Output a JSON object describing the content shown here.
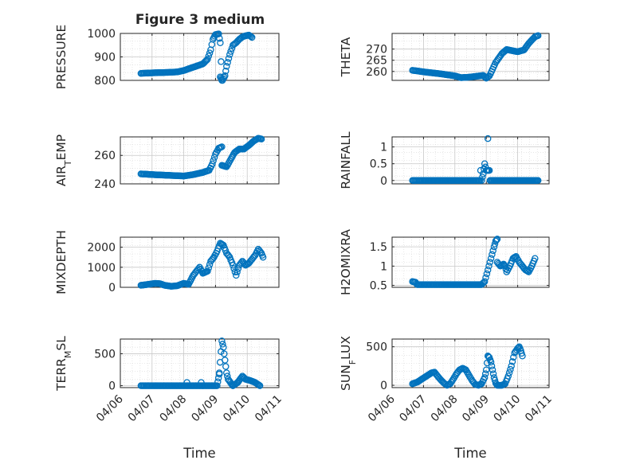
{
  "figure_title": "Figure 3 medium",
  "colors": {
    "marker": "#0072BD",
    "axis": "#262626",
    "grid": "#d6d6d6"
  },
  "chart_data": [
    {
      "type": "scatter",
      "ylabel": "PRESSURE",
      "ylim": [
        800,
        1000
      ],
      "yticks": [
        800,
        900,
        1000
      ],
      "ytick_labels": [
        "800",
        "900",
        "1000"
      ],
      "xlim": [
        0,
        5
      ],
      "xticks": [
        0,
        1,
        2,
        3,
        4,
        5
      ],
      "xtick_labels": [
        "04/06",
        "04/07",
        "04/08",
        "04/09",
        "04/10",
        "04/11"
      ],
      "xlabel": "",
      "segments": [
        [
          [
            0.65,
            830
          ],
          [
            1.0,
            832
          ],
          [
            1.5,
            834
          ],
          [
            1.8,
            836
          ],
          [
            2.0,
            842
          ],
          [
            2.3,
            856
          ],
          [
            2.6,
            870
          ],
          [
            2.75,
            890
          ],
          [
            2.85,
            930
          ],
          [
            2.92,
            975
          ],
          [
            3.0,
            995
          ],
          [
            3.1,
            998
          ],
          [
            3.15,
            960
          ],
          [
            3.2,
            800
          ]
        ],
        [
          [
            3.15,
            815
          ],
          [
            3.22,
            800
          ],
          [
            3.3,
            820
          ],
          [
            3.35,
            860
          ],
          [
            3.45,
            910
          ],
          [
            3.55,
            950
          ],
          [
            3.65,
            960
          ],
          [
            3.75,
            975
          ],
          [
            3.85,
            985
          ],
          [
            3.95,
            990
          ],
          [
            4.05,
            993
          ],
          [
            4.15,
            983
          ]
        ]
      ]
    },
    {
      "type": "scatter",
      "ylabel": "THETA",
      "ylim": [
        256,
        277
      ],
      "yticks": [
        260,
        265,
        270
      ],
      "ytick_labels": [
        "260",
        "265",
        "270"
      ],
      "xlim": [
        0,
        5
      ],
      "xticks": [
        0,
        1,
        2,
        3,
        4,
        5
      ],
      "xtick_labels": [
        "04/06",
        "04/07",
        "04/08",
        "04/09",
        "04/10",
        "04/11"
      ],
      "xlabel": "",
      "segments": [
        [
          [
            0.65,
            260.5
          ],
          [
            1.0,
            259.8
          ],
          [
            1.5,
            259
          ],
          [
            2.0,
            258
          ],
          [
            2.2,
            257.2
          ],
          [
            2.5,
            257.5
          ],
          [
            2.9,
            258.2
          ],
          [
            3.0,
            257
          ],
          [
            3.1,
            258
          ],
          [
            3.3,
            264
          ],
          [
            3.5,
            268
          ],
          [
            3.65,
            269.8
          ],
          [
            3.85,
            269.2
          ],
          [
            4.0,
            268.8
          ],
          [
            4.2,
            269.6
          ],
          [
            4.35,
            272.5
          ],
          [
            4.55,
            275.5
          ],
          [
            4.65,
            276
          ]
        ]
      ]
    },
    {
      "type": "scatter",
      "ylabel": "AIR_TEMP",
      "ylim": [
        240,
        273
      ],
      "yticks": [
        240,
        260
      ],
      "ytick_labels": [
        "240",
        "260"
      ],
      "xlim": [
        0,
        5
      ],
      "xticks": [
        0,
        1,
        2,
        3,
        4,
        5
      ],
      "xtick_labels": [
        "04/06",
        "04/07",
        "04/08",
        "04/09",
        "04/10",
        "04/11"
      ],
      "xlabel": "",
      "segments": [
        [
          [
            0.65,
            247
          ],
          [
            1.0,
            246.5
          ],
          [
            1.5,
            246
          ],
          [
            2.0,
            245.5
          ],
          [
            2.3,
            246.5
          ],
          [
            2.6,
            248
          ],
          [
            2.8,
            249.5
          ],
          [
            2.9,
            254
          ],
          [
            3.0,
            261
          ],
          [
            3.1,
            265
          ],
          [
            3.2,
            266
          ]
        ],
        [
          [
            3.2,
            253
          ],
          [
            3.35,
            252
          ],
          [
            3.45,
            256
          ],
          [
            3.6,
            262
          ],
          [
            3.75,
            264.5
          ],
          [
            3.9,
            264.5
          ],
          [
            4.05,
            267
          ],
          [
            4.2,
            270
          ],
          [
            4.35,
            272
          ],
          [
            4.45,
            271.5
          ]
        ]
      ]
    },
    {
      "type": "scatter",
      "ylabel": "RAINFALL",
      "ylim": [
        -0.1,
        1.3
      ],
      "yticks": [
        0,
        0.5,
        1
      ],
      "ytick_labels": [
        "0",
        "0.5",
        "1"
      ],
      "xlim": [
        0,
        5
      ],
      "xticks": [
        0,
        1,
        2,
        3,
        4,
        5
      ],
      "xtick_labels": [
        "04/06",
        "04/07",
        "04/08",
        "04/09",
        "04/10",
        "04/11"
      ],
      "xlabel": "",
      "segments": [
        [
          [
            0.65,
            0
          ],
          [
            1.0,
            0
          ],
          [
            1.5,
            0
          ],
          [
            2.0,
            0
          ],
          [
            2.5,
            0
          ],
          [
            2.8,
            0
          ]
        ],
        [
          [
            2.82,
            0.3
          ],
          [
            2.85,
            0
          ],
          [
            2.9,
            0.2
          ],
          [
            2.95,
            0.5
          ],
          [
            3.0,
            0.3
          ],
          [
            3.05,
            0.3
          ],
          [
            3.1,
            0.3
          ],
          [
            3.12,
            0
          ]
        ],
        [
          [
            3.15,
            0
          ],
          [
            3.5,
            0
          ],
          [
            4.0,
            0
          ],
          [
            4.5,
            0
          ],
          [
            4.65,
            0
          ]
        ]
      ],
      "extra_points": [
        [
          3.05,
          1.25
        ]
      ]
    },
    {
      "type": "scatter",
      "ylabel": "MIXDEPTH",
      "ylim": [
        0,
        2500
      ],
      "yticks": [
        0,
        1000,
        2000
      ],
      "ytick_labels": [
        "0",
        "1000",
        "2000"
      ],
      "xlim": [
        0,
        5
      ],
      "xticks": [
        0,
        1,
        2,
        3,
        4,
        5
      ],
      "xtick_labels": [
        "04/06",
        "04/07",
        "04/08",
        "04/09",
        "04/10",
        "04/11"
      ],
      "xlabel": "",
      "segments": [
        [
          [
            0.65,
            100
          ],
          [
            0.9,
            150
          ],
          [
            1.1,
            200
          ],
          [
            1.25,
            180
          ],
          [
            1.4,
            100
          ],
          [
            1.6,
            50
          ],
          [
            1.8,
            80
          ],
          [
            2.0,
            200
          ],
          [
            2.15,
            150
          ],
          [
            2.3,
            600
          ],
          [
            2.4,
            800
          ],
          [
            2.5,
            1000
          ],
          [
            2.6,
            700
          ],
          [
            2.75,
            800
          ],
          [
            2.85,
            1300
          ],
          [
            2.95,
            1500
          ],
          [
            3.05,
            1800
          ],
          [
            3.15,
            2200
          ],
          [
            3.25,
            2100
          ],
          [
            3.35,
            1700
          ],
          [
            3.45,
            1500
          ],
          [
            3.55,
            1100
          ],
          [
            3.65,
            600
          ],
          [
            3.75,
            1100
          ],
          [
            3.85,
            1300
          ],
          [
            3.95,
            1100
          ],
          [
            4.05,
            1200
          ],
          [
            4.15,
            1400
          ],
          [
            4.25,
            1600
          ],
          [
            4.35,
            1900
          ],
          [
            4.45,
            1700
          ],
          [
            4.5,
            1500
          ]
        ]
      ]
    },
    {
      "type": "scatter",
      "ylabel": "H2OMIXRA",
      "ylim": [
        0.45,
        1.75
      ],
      "yticks": [
        0.5,
        1,
        1.5
      ],
      "ytick_labels": [
        "0.5",
        "1",
        "1.5"
      ],
      "xlim": [
        0,
        5
      ],
      "xticks": [
        0,
        1,
        2,
        3,
        4,
        5
      ],
      "xtick_labels": [
        "04/06",
        "04/07",
        "04/08",
        "04/09",
        "04/10",
        "04/11"
      ],
      "xlabel": "",
      "segments": [
        [
          [
            0.65,
            0.6
          ],
          [
            0.75,
            0.58
          ],
          [
            0.8,
            0.52
          ],
          [
            1.5,
            0.52
          ],
          [
            2.0,
            0.52
          ],
          [
            2.5,
            0.52
          ],
          [
            2.85,
            0.52
          ],
          [
            2.95,
            0.6
          ],
          [
            3.05,
            0.9
          ],
          [
            3.15,
            1.2
          ],
          [
            3.25,
            1.5
          ],
          [
            3.3,
            1.65
          ],
          [
            3.35,
            1.7
          ]
        ],
        [
          [
            3.35,
            1.1
          ],
          [
            3.45,
            1.0
          ],
          [
            3.55,
            1.05
          ],
          [
            3.6,
            1.0
          ],
          [
            3.65,
            0.85
          ],
          [
            3.75,
            1.0
          ],
          [
            3.85,
            1.2
          ],
          [
            3.95,
            1.25
          ],
          [
            4.05,
            1.1
          ],
          [
            4.15,
            1.0
          ],
          [
            4.25,
            0.9
          ],
          [
            4.35,
            0.85
          ],
          [
            4.45,
            1.0
          ],
          [
            4.55,
            1.2
          ]
        ]
      ]
    },
    {
      "type": "scatter",
      "ylabel": "TERR_MSL",
      "ylim": [
        -30,
        730
      ],
      "yticks": [
        0,
        500
      ],
      "ytick_labels": [
        "0",
        "500"
      ],
      "xlim": [
        0,
        5
      ],
      "xticks": [
        0,
        1,
        2,
        3,
        4,
        5
      ],
      "xtick_labels": [
        "04/06",
        "04/07",
        "04/08",
        "04/09",
        "04/10",
        "04/11"
      ],
      "xlabel": "Time",
      "segments": [
        [
          [
            0.65,
            0
          ],
          [
            1.0,
            0
          ],
          [
            1.5,
            0
          ],
          [
            2.0,
            0
          ],
          [
            2.5,
            0
          ],
          [
            2.9,
            0
          ],
          [
            3.05,
            0
          ],
          [
            3.12,
            180
          ]
        ],
        [
          [
            3.12,
            200
          ],
          [
            3.2,
            700
          ],
          [
            3.25,
            600
          ],
          [
            3.3,
            400
          ],
          [
            3.35,
            200
          ],
          [
            3.4,
            100
          ],
          [
            3.5,
            30
          ],
          [
            3.55,
            0
          ]
        ],
        [
          [
            3.55,
            0
          ],
          [
            3.7,
            50
          ],
          [
            3.85,
            150
          ],
          [
            3.95,
            100
          ],
          [
            4.1,
            80
          ],
          [
            4.25,
            50
          ],
          [
            4.4,
            0
          ]
        ]
      ],
      "extra_points": [
        [
          2.1,
          50
        ],
        [
          2.55,
          50
        ]
      ]
    },
    {
      "type": "scatter",
      "ylabel": "SUN_FLUX",
      "ylim": [
        -30,
        600
      ],
      "yticks": [
        0,
        500
      ],
      "ytick_labels": [
        "0",
        "500"
      ],
      "xlim": [
        0,
        5
      ],
      "xticks": [
        0,
        1,
        2,
        3,
        4,
        5
      ],
      "xtick_labels": [
        "04/06",
        "04/07",
        "04/08",
        "04/09",
        "04/10",
        "04/11"
      ],
      "xlabel": "Time",
      "segments": [
        [
          [
            0.65,
            20
          ],
          [
            0.8,
            40
          ],
          [
            0.95,
            80
          ],
          [
            1.1,
            120
          ],
          [
            1.25,
            160
          ],
          [
            1.35,
            170
          ],
          [
            1.45,
            120
          ],
          [
            1.55,
            70
          ],
          [
            1.65,
            30
          ],
          [
            1.75,
            0
          ],
          [
            1.85,
            20
          ],
          [
            1.95,
            80
          ],
          [
            2.05,
            150
          ],
          [
            2.15,
            200
          ],
          [
            2.25,
            220
          ],
          [
            2.35,
            200
          ],
          [
            2.45,
            130
          ],
          [
            2.55,
            60
          ],
          [
            2.65,
            10
          ],
          [
            2.75,
            0
          ],
          [
            2.85,
            20
          ],
          [
            2.95,
            100
          ],
          [
            3.0,
            200
          ],
          [
            3.05,
            380
          ],
          [
            3.1,
            360
          ],
          [
            3.15,
            300
          ],
          [
            3.2,
            200
          ],
          [
            3.25,
            100
          ],
          [
            3.3,
            30
          ],
          [
            3.35,
            0
          ],
          [
            3.5,
            0
          ],
          [
            3.6,
            20
          ],
          [
            3.7,
            120
          ],
          [
            3.8,
            250
          ],
          [
            3.9,
            420
          ],
          [
            4.0,
            480
          ],
          [
            4.05,
            500
          ],
          [
            4.1,
            450
          ],
          [
            4.15,
            380
          ]
        ]
      ]
    }
  ]
}
